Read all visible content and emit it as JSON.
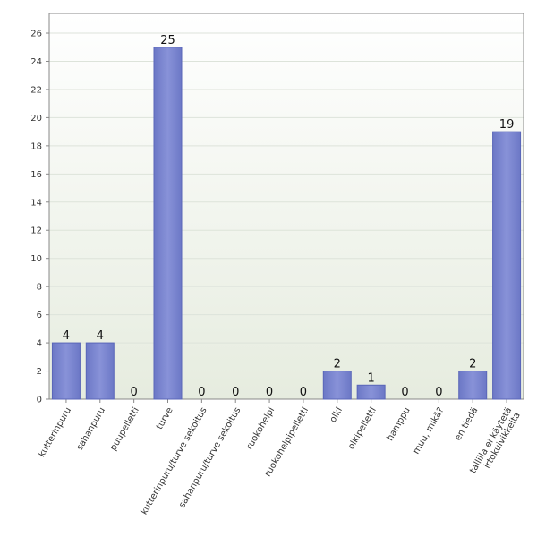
{
  "chart_data": {
    "type": "bar",
    "categories": [
      "kutterinpuru",
      "sahanpuru",
      "puupelletti",
      "turve",
      "kutterinpuru/turve sekoitus",
      "sahanpuru/turve sekoitus",
      "ruokohelpi",
      "ruokohelpipelletti",
      "olki",
      "olkipelletti",
      "hamppu",
      "muu, mikä?",
      "en tiedä",
      "tallilla ei käytetä\nirtokuivikkeita"
    ],
    "values": [
      4,
      4,
      0,
      25,
      0,
      0,
      0,
      0,
      2,
      1,
      0,
      0,
      2,
      19
    ],
    "data_labels": [
      "4",
      "4",
      "0",
      "25",
      "0",
      "0",
      "0",
      "0",
      "2",
      "1",
      "0",
      "0",
      "2",
      "19"
    ],
    "yticks": [
      "0",
      "2",
      "4",
      "6",
      "8",
      "10",
      "12",
      "14",
      "16",
      "18",
      "20",
      "22",
      "24",
      "26"
    ],
    "ylim": [
      0,
      27.4
    ],
    "grid": true,
    "title": "",
    "xlabel": "",
    "ylabel": "",
    "colors": {
      "bar_fill": "#7b86cf",
      "bar_edge": "#5a66b8",
      "bg_top": "#ffffff",
      "bg_bottom": "#e6ecdf",
      "grid": "#dde3da",
      "axis": "#888888"
    }
  }
}
